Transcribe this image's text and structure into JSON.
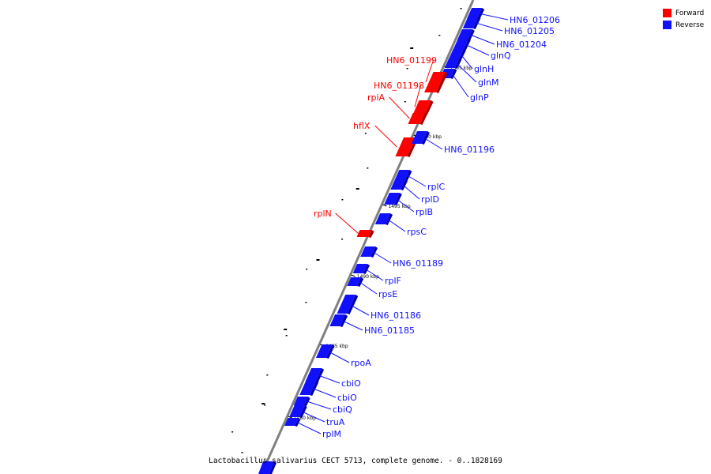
{
  "legend": {
    "forward_label": "Forward",
    "reverse_label": "Reverse",
    "forward_color": "#ff0000",
    "reverse_color": "#1010ff"
  },
  "caption": "Lactobacillus salivarius CECT 5713, complete genome. - 0..1828169",
  "colors": {
    "forward": "#ff0000",
    "reverse": "#1010ff",
    "backbone": "#808080"
  },
  "ticks": [
    "1505 kbp",
    "1500 kbp",
    "1495 kbp",
    "1490 kbp",
    "1485 kbp",
    "1480 kbp"
  ],
  "genes": [
    {
      "name": "HN6_01206",
      "strand": "reverse"
    },
    {
      "name": "HN6_01205",
      "strand": "reverse"
    },
    {
      "name": "HN6_01204",
      "strand": "reverse"
    },
    {
      "name": "glnQ",
      "strand": "reverse"
    },
    {
      "name": "glnH",
      "strand": "reverse"
    },
    {
      "name": "glnM",
      "strand": "reverse"
    },
    {
      "name": "glnP",
      "strand": "reverse"
    },
    {
      "name": "HN6_01199",
      "strand": "forward"
    },
    {
      "name": "HN6_01198",
      "strand": "forward"
    },
    {
      "name": "rpiA",
      "strand": "forward"
    },
    {
      "name": "hflX",
      "strand": "forward"
    },
    {
      "name": "HN6_01196",
      "strand": "reverse"
    },
    {
      "name": "rplC",
      "strand": "reverse"
    },
    {
      "name": "rplD",
      "strand": "reverse"
    },
    {
      "name": "rplB",
      "strand": "reverse"
    },
    {
      "name": "rpsC",
      "strand": "reverse"
    },
    {
      "name": "rplN",
      "strand": "forward"
    },
    {
      "name": "HN6_01189",
      "strand": "reverse"
    },
    {
      "name": "rplF",
      "strand": "reverse"
    },
    {
      "name": "rpsE",
      "strand": "reverse"
    },
    {
      "name": "HN6_01186",
      "strand": "reverse"
    },
    {
      "name": "HN6_01185",
      "strand": "reverse"
    },
    {
      "name": "rpoA",
      "strand": "reverse"
    },
    {
      "name": "cbiO",
      "strand": "reverse"
    },
    {
      "name": "cbiO",
      "strand": "reverse"
    },
    {
      "name": "cbiQ",
      "strand": "reverse"
    },
    {
      "name": "truA",
      "strand": "reverse"
    },
    {
      "name": "rplM",
      "strand": "reverse"
    }
  ]
}
